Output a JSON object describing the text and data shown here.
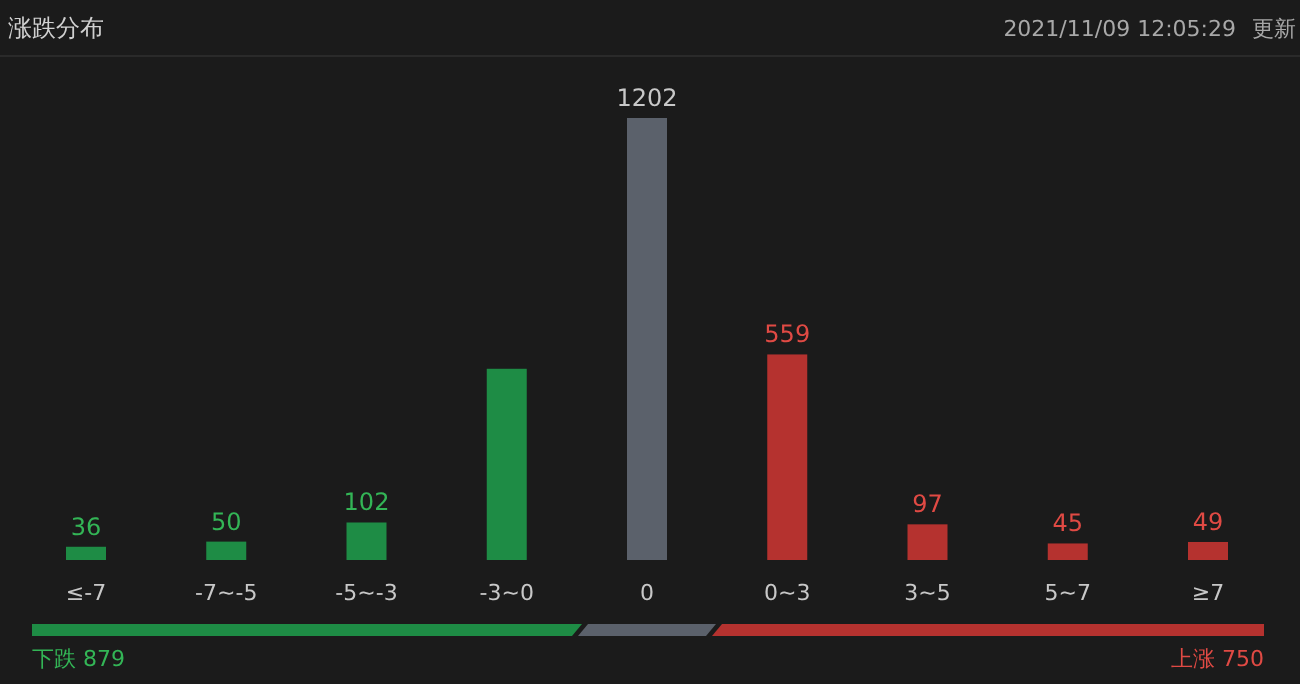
{
  "chart_data": {
    "type": "bar",
    "title": "涨跌分布",
    "categories": [
      "≤-7",
      "-7~-5",
      "-5~-3",
      "-3~0",
      "0",
      "0~3",
      "3~5",
      "5~7",
      "≥7"
    ],
    "values": [
      36,
      50,
      102,
      520,
      1202,
      559,
      97,
      45,
      49
    ],
    "value_labels": [
      "36",
      "50",
      "102",
      null,
      "1202",
      "559",
      "97",
      "45",
      "49"
    ],
    "colors": [
      "#1e8c45",
      "#1e8c45",
      "#1e8c45",
      "#1e8c45",
      "#5b616b",
      "#b5322f",
      "#b5322f",
      "#b5322f",
      "#b5322f"
    ],
    "annotations": [
      "2021/11/09 12:05:29",
      "更新",
      "下跌 879",
      "上涨 750"
    ]
  }
}
